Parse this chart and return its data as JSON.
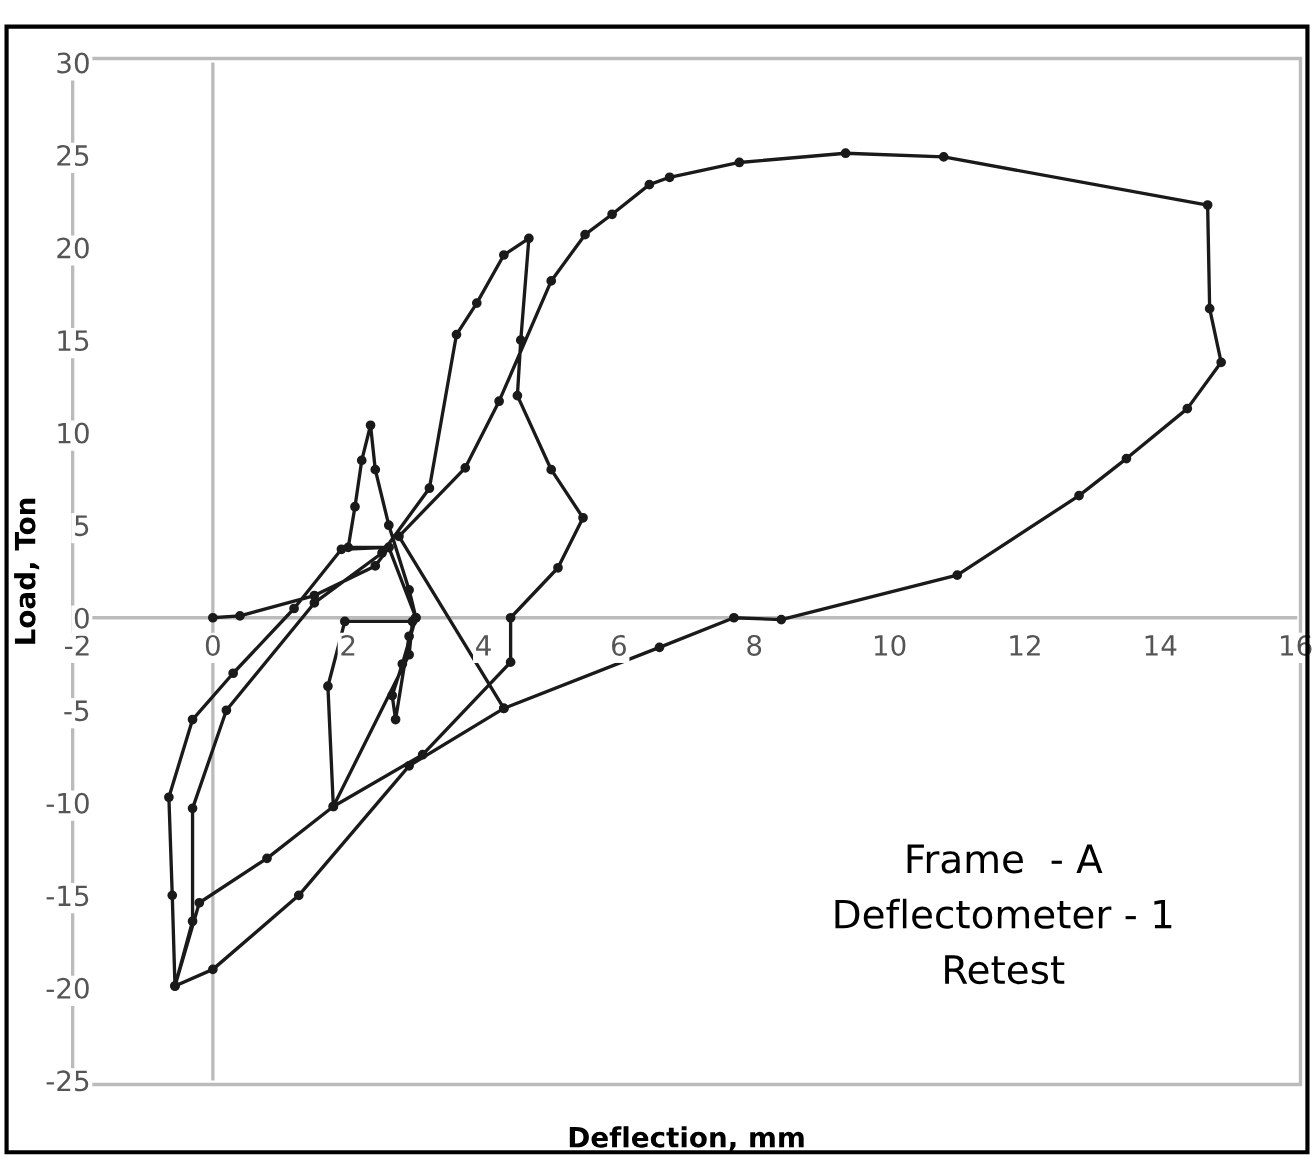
{
  "chart_data": {
    "type": "line",
    "xlabel": "Deflection, mm",
    "ylabel": "Load, Ton",
    "annotations": [
      "Frame  - A\nDeflectometer - 1\nRetest"
    ],
    "series": [
      {
        "color": "#1a1a1a",
        "x": [
          0,
          0.4,
          1.5,
          2.4,
          2.6,
          2.0,
          2.1,
          2.2,
          2.33,
          2.4,
          2.6,
          2.9,
          3.0,
          2.8,
          2.65,
          2.7,
          2.9,
          3.0,
          2.6,
          1.9,
          1.2,
          0.3,
          -0.3,
          -0.65,
          -0.6,
          -0.56,
          -0.3,
          -0.3,
          0.2,
          1.5,
          2.5,
          3.2,
          3.6,
          3.9,
          4.3,
          4.67,
          4.55,
          4.5,
          5.0,
          5.47,
          5.1,
          4.4,
          4.4,
          3.1,
          1.78,
          1.7,
          1.95,
          2.95,
          2.9,
          1.78,
          0.8,
          -0.2,
          -0.56,
          0,
          1.27,
          2.9,
          4.3,
          2.75,
          3.73,
          4.23,
          5.0,
          5.5,
          5.9,
          6.45,
          6.75,
          7.78,
          9.35,
          10.8,
          14.7,
          14.73,
          14.9,
          14.4,
          13.5,
          12.8,
          11.0,
          8.4,
          7.7,
          6.6,
          4.3
        ],
        "values": [
          0,
          0.1,
          1.2,
          2.8,
          3.8,
          3.8,
          6,
          8.5,
          10.4,
          8,
          5,
          1.5,
          0,
          -2.5,
          -4.2,
          -5.5,
          -1,
          0,
          3.8,
          3.7,
          0.5,
          -3,
          -5.5,
          -9.7,
          -15,
          -19.9,
          -16.4,
          -10.3,
          -5,
          0.8,
          3.5,
          7,
          15.3,
          17,
          19.6,
          20.5,
          15,
          12,
          8,
          5.4,
          2.7,
          0,
          -2.4,
          -7.4,
          -10.2,
          -3.7,
          -0.2,
          -0.2,
          -2,
          -10.2,
          -13,
          -15.4,
          -19.9,
          -19,
          -15,
          -8,
          -4.9,
          4.4,
          8.1,
          11.7,
          18.2,
          20.7,
          21.8,
          23.4,
          23.8,
          24.6,
          25.1,
          24.9,
          22.3,
          16.7,
          13.8,
          11.3,
          8.6,
          6.6,
          2.3,
          -0.1,
          0,
          -1.6,
          -4.9
        ]
      }
    ],
    "xlim": [
      -2,
      16
    ],
    "xticks": [
      -2,
      0,
      2,
      4,
      6,
      8,
      10,
      12,
      14,
      16
    ],
    "ylim": [
      -25,
      30
    ],
    "yticks": [
      -25,
      -20,
      -15,
      -10,
      -5,
      0,
      5,
      10,
      15,
      20,
      25,
      30
    ],
    "ref_lines": [
      {
        "axis": "x",
        "value": 0,
        "color": "#bbbbbb"
      }
    ],
    "marker": "circle",
    "line_style": "solid",
    "grid": false,
    "legend": false
  }
}
